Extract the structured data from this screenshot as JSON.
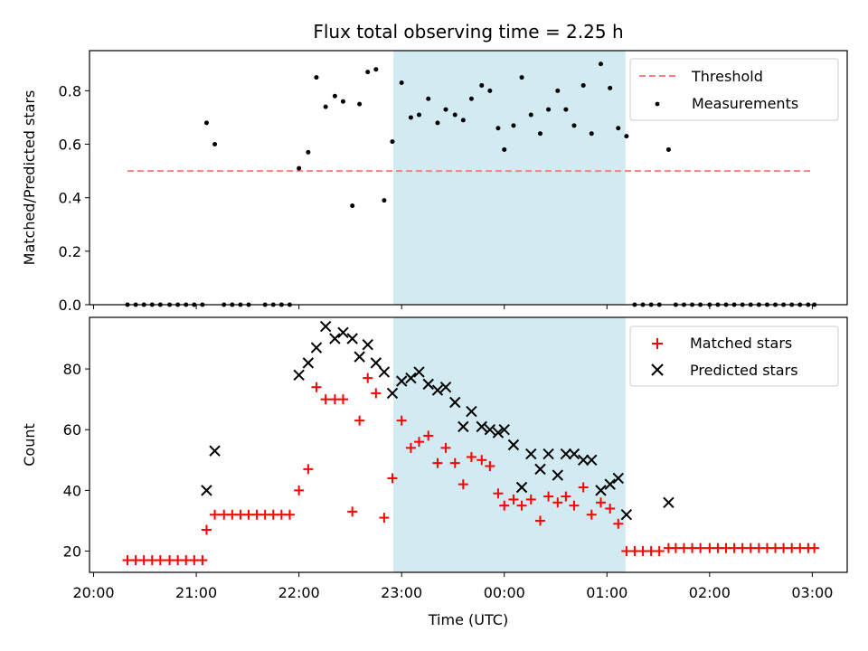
{
  "chart_data": {
    "type": "scatter",
    "title": "Flux total observing time = 2.25 h",
    "xlabel": "Time (UTC)",
    "x_ticks": [
      "20:00",
      "21:00",
      "22:00",
      "23:00",
      "00:00",
      "01:00",
      "02:00",
      "03:00"
    ],
    "x_range": [
      -0.04,
      7.34
    ],
    "highlight_span": [
      2.92,
      5.18
    ],
    "highlight_color": "#add8e6",
    "panels": [
      {
        "ylabel": "Matched/Predicted stars",
        "ylim": [
          0,
          0.95
        ],
        "y_ticks": [
          0.0,
          0.2,
          0.4,
          0.6,
          0.8
        ],
        "legend_position": "top-right",
        "threshold": {
          "name": "Threshold",
          "value": 0.5,
          "x_start": 0.33,
          "x_end": 7.0,
          "color": "#ff7f7f"
        },
        "series": [
          {
            "name": "Measurements",
            "color": "#000000",
            "marker": "dot",
            "points": [
              [
                0.33,
                0
              ],
              [
                0.41,
                0
              ],
              [
                0.49,
                0
              ],
              [
                0.57,
                0
              ],
              [
                0.65,
                0
              ],
              [
                0.74,
                0
              ],
              [
                0.82,
                0
              ],
              [
                0.9,
                0
              ],
              [
                0.98,
                0
              ],
              [
                1.06,
                0
              ],
              [
                1.1,
                0.68
              ],
              [
                1.18,
                0.6
              ],
              [
                1.27,
                0
              ],
              [
                1.35,
                0
              ],
              [
                1.43,
                0
              ],
              [
                1.51,
                0
              ],
              [
                1.67,
                0
              ],
              [
                1.75,
                0
              ],
              [
                1.83,
                0
              ],
              [
                1.91,
                0
              ],
              [
                2.0,
                0.51
              ],
              [
                2.09,
                0.57
              ],
              [
                2.17,
                0.85
              ],
              [
                2.26,
                0.74
              ],
              [
                2.35,
                0.78
              ],
              [
                2.43,
                0.76
              ],
              [
                2.52,
                0.37
              ],
              [
                2.59,
                0.75
              ],
              [
                2.67,
                0.87
              ],
              [
                2.75,
                0.88
              ],
              [
                2.83,
                0.39
              ],
              [
                2.91,
                0.61
              ],
              [
                3.0,
                0.83
              ],
              [
                3.09,
                0.7
              ],
              [
                3.17,
                0.71
              ],
              [
                3.26,
                0.77
              ],
              [
                3.35,
                0.68
              ],
              [
                3.43,
                0.73
              ],
              [
                3.52,
                0.71
              ],
              [
                3.6,
                0.69
              ],
              [
                3.68,
                0.77
              ],
              [
                3.78,
                0.82
              ],
              [
                3.86,
                0.8
              ],
              [
                3.94,
                0.66
              ],
              [
                4.0,
                0.58
              ],
              [
                4.09,
                0.67
              ],
              [
                4.17,
                0.85
              ],
              [
                4.26,
                0.71
              ],
              [
                4.35,
                0.64
              ],
              [
                4.43,
                0.73
              ],
              [
                4.52,
                0.8
              ],
              [
                4.6,
                0.73
              ],
              [
                4.68,
                0.67
              ],
              [
                4.77,
                0.82
              ],
              [
                4.85,
                0.64
              ],
              [
                4.94,
                0.9
              ],
              [
                5.03,
                0.81
              ],
              [
                5.11,
                0.66
              ],
              [
                5.19,
                0.63
              ],
              [
                5.27,
                0
              ],
              [
                5.35,
                0
              ],
              [
                5.43,
                0
              ],
              [
                5.51,
                0
              ],
              [
                5.6,
                0.58
              ],
              [
                5.67,
                0
              ],
              [
                5.75,
                0
              ],
              [
                5.83,
                0
              ],
              [
                5.91,
                0
              ],
              [
                6.0,
                0
              ],
              [
                6.08,
                0
              ],
              [
                6.16,
                0
              ],
              [
                6.24,
                0
              ],
              [
                6.32,
                0
              ],
              [
                6.4,
                0
              ],
              [
                6.48,
                0
              ],
              [
                6.56,
                0
              ],
              [
                6.64,
                0
              ],
              [
                6.72,
                0
              ],
              [
                6.8,
                0
              ],
              [
                6.88,
                0
              ],
              [
                6.96,
                0
              ],
              [
                7.02,
                0
              ]
            ]
          }
        ]
      },
      {
        "ylabel": "Count",
        "ylim": [
          13,
          97
        ],
        "y_ticks": [
          20,
          40,
          60,
          80
        ],
        "legend_position": "top-right",
        "series": [
          {
            "name": "Matched stars",
            "color": "#ff0000",
            "marker": "plus",
            "points": [
              [
                0.33,
                17
              ],
              [
                0.41,
                17
              ],
              [
                0.49,
                17
              ],
              [
                0.57,
                17
              ],
              [
                0.65,
                17
              ],
              [
                0.74,
                17
              ],
              [
                0.82,
                17
              ],
              [
                0.9,
                17
              ],
              [
                0.98,
                17
              ],
              [
                1.06,
                17
              ],
              [
                1.1,
                27
              ],
              [
                1.18,
                32
              ],
              [
                1.27,
                32
              ],
              [
                1.35,
                32
              ],
              [
                1.43,
                32
              ],
              [
                1.51,
                32
              ],
              [
                1.59,
                32
              ],
              [
                1.67,
                32
              ],
              [
                1.75,
                32
              ],
              [
                1.83,
                32
              ],
              [
                1.91,
                32
              ],
              [
                2.0,
                40
              ],
              [
                2.09,
                47
              ],
              [
                2.17,
                74
              ],
              [
                2.26,
                70
              ],
              [
                2.35,
                70
              ],
              [
                2.43,
                70
              ],
              [
                2.52,
                33
              ],
              [
                2.59,
                63
              ],
              [
                2.67,
                77
              ],
              [
                2.75,
                72
              ],
              [
                2.83,
                31
              ],
              [
                2.91,
                44
              ],
              [
                3.0,
                63
              ],
              [
                3.09,
                54
              ],
              [
                3.17,
                56
              ],
              [
                3.26,
                58
              ],
              [
                3.35,
                49
              ],
              [
                3.43,
                54
              ],
              [
                3.52,
                49
              ],
              [
                3.6,
                42
              ],
              [
                3.68,
                51
              ],
              [
                3.78,
                50
              ],
              [
                3.86,
                48
              ],
              [
                3.94,
                39
              ],
              [
                4.0,
                35
              ],
              [
                4.09,
                37
              ],
              [
                4.17,
                35
              ],
              [
                4.26,
                37
              ],
              [
                4.35,
                30
              ],
              [
                4.43,
                38
              ],
              [
                4.52,
                36
              ],
              [
                4.6,
                38
              ],
              [
                4.68,
                35
              ],
              [
                4.77,
                41
              ],
              [
                4.85,
                32
              ],
              [
                4.94,
                36
              ],
              [
                5.03,
                34
              ],
              [
                5.11,
                29
              ],
              [
                5.19,
                20
              ],
              [
                5.27,
                20
              ],
              [
                5.35,
                20
              ],
              [
                5.43,
                20
              ],
              [
                5.51,
                20
              ],
              [
                5.6,
                21
              ],
              [
                5.67,
                21
              ],
              [
                5.75,
                21
              ],
              [
                5.83,
                21
              ],
              [
                5.91,
                21
              ],
              [
                6.0,
                21
              ],
              [
                6.08,
                21
              ],
              [
                6.16,
                21
              ],
              [
                6.24,
                21
              ],
              [
                6.32,
                21
              ],
              [
                6.4,
                21
              ],
              [
                6.48,
                21
              ],
              [
                6.56,
                21
              ],
              [
                6.64,
                21
              ],
              [
                6.72,
                21
              ],
              [
                6.8,
                21
              ],
              [
                6.88,
                21
              ],
              [
                6.96,
                21
              ],
              [
                7.02,
                21
              ]
            ]
          },
          {
            "name": "Predicted stars",
            "color": "#000000",
            "marker": "x",
            "points": [
              [
                1.1,
                40
              ],
              [
                1.18,
                53
              ],
              [
                2.0,
                78
              ],
              [
                2.09,
                82
              ],
              [
                2.17,
                87
              ],
              [
                2.26,
                94
              ],
              [
                2.35,
                90
              ],
              [
                2.43,
                92
              ],
              [
                2.52,
                90
              ],
              [
                2.59,
                84
              ],
              [
                2.67,
                88
              ],
              [
                2.75,
                82
              ],
              [
                2.83,
                79
              ],
              [
                2.91,
                72
              ],
              [
                3.0,
                76
              ],
              [
                3.09,
                77
              ],
              [
                3.17,
                79
              ],
              [
                3.26,
                75
              ],
              [
                3.35,
                73
              ],
              [
                3.43,
                74
              ],
              [
                3.52,
                69
              ],
              [
                3.6,
                61
              ],
              [
                3.68,
                66
              ],
              [
                3.78,
                61
              ],
              [
                3.86,
                60
              ],
              [
                3.94,
                59
              ],
              [
                4.0,
                60
              ],
              [
                4.09,
                55
              ],
              [
                4.17,
                41
              ],
              [
                4.26,
                52
              ],
              [
                4.35,
                47
              ],
              [
                4.43,
                52
              ],
              [
                4.52,
                45
              ],
              [
                4.6,
                52
              ],
              [
                4.68,
                52
              ],
              [
                4.77,
                50
              ],
              [
                4.85,
                50
              ],
              [
                4.94,
                40
              ],
              [
                5.03,
                42
              ],
              [
                5.11,
                44
              ],
              [
                5.19,
                32
              ],
              [
                5.6,
                36
              ]
            ]
          }
        ]
      }
    ]
  }
}
